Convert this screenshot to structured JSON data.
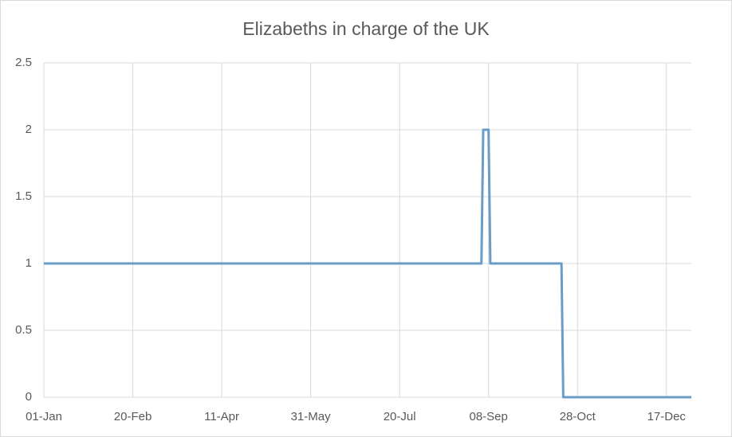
{
  "chart_data": {
    "type": "line",
    "title": "Elizabeths in charge of the UK",
    "x": [
      0,
      246,
      247,
      250,
      251,
      291,
      292,
      364
    ],
    "series": [
      {
        "color": "#6a9cc8",
        "values": [
          1,
          1,
          2,
          2,
          1,
          1,
          0,
          0
        ]
      }
    ],
    "xlim": [
      0,
      364
    ],
    "xticks": [
      {
        "value": 0,
        "label": "01-Jan"
      },
      {
        "value": 50,
        "label": "20-Feb"
      },
      {
        "value": 100,
        "label": "11-Apr"
      },
      {
        "value": 150,
        "label": "31-May"
      },
      {
        "value": 200,
        "label": "20-Jul"
      },
      {
        "value": 250,
        "label": "08-Sep"
      },
      {
        "value": 300,
        "label": "28-Oct"
      },
      {
        "value": 350,
        "label": "17-Dec"
      }
    ],
    "ylim": [
      0,
      2.5
    ],
    "yticks": [
      0,
      0.5,
      1,
      1.5,
      2,
      2.5
    ],
    "grid": true
  }
}
